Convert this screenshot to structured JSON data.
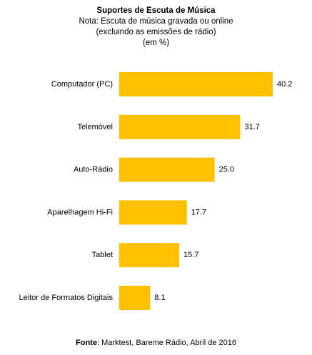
{
  "chart_data": {
    "type": "bar",
    "orientation": "horizontal",
    "title": "Suportes de Escuta de Música",
    "subtitle_lines": [
      "Nota: Escuta de música gravada ou online",
      "(excluindo as emissões de rádio)",
      "(em %)"
    ],
    "categories": [
      "Computador (PC)",
      "Telemóvel",
      "Auto-Rádio",
      "Aparelhagem Hi-Fi",
      "Tablet",
      "Leitor de Formatos Digitais"
    ],
    "values": [
      40.2,
      31.7,
      25.0,
      17.7,
      15.7,
      8.1
    ],
    "value_labels": [
      "40.2",
      "31.7",
      "25.0",
      "17.7",
      "15.7",
      "8.1"
    ],
    "xlim": [
      0,
      40.2
    ],
    "grid": false,
    "legend": "none",
    "bar_color": "#FFC000"
  },
  "source": {
    "label": "Fonte",
    "text": ": Marktest, Bareme Rádio, Abril de 2016"
  }
}
